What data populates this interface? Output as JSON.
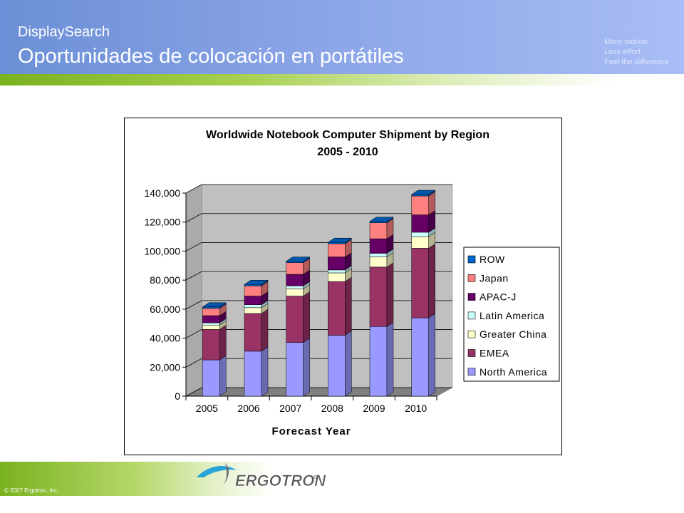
{
  "header": {
    "brand": "DisplaySearch",
    "title": "Oportunidades de colocación en portátiles",
    "motto": [
      "More motion",
      "Less effort",
      "Feel the difference"
    ]
  },
  "footer": {
    "copyright": "© 2007 Ergotron, Inc.",
    "logo_text": "ERGOTRON"
  },
  "chart_data": {
    "type": "bar",
    "stacked": true,
    "three_d": true,
    "title": "Worldwide Notebook Computer Shipment by Region",
    "subtitle": "2005 - 2010",
    "xlabel": "Forecast Year",
    "ylabel": "",
    "categories": [
      "2005",
      "2006",
      "2007",
      "2008",
      "2009",
      "2010"
    ],
    "ylim": [
      0,
      140000
    ],
    "yticks": [
      "0",
      "20,000",
      "40,000",
      "60,000",
      "80,000",
      "100,000",
      "120,000",
      "140,000"
    ],
    "legend_position": "right",
    "grid": true,
    "series": [
      {
        "name": "North America",
        "color": "#9999ff",
        "values": [
          25000,
          31000,
          37000,
          42000,
          48000,
          54000
        ]
      },
      {
        "name": "EMEA",
        "color": "#993366",
        "values": [
          21000,
          26000,
          32000,
          37000,
          41000,
          48000
        ]
      },
      {
        "name": "Greater China",
        "color": "#ffffcc",
        "values": [
          3000,
          4000,
          5000,
          6000,
          7000,
          8000
        ]
      },
      {
        "name": "Latin America",
        "color": "#ccffff",
        "values": [
          1500,
          2000,
          2000,
          2000,
          2500,
          3000
        ]
      },
      {
        "name": "APAC-J",
        "color": "#660066",
        "values": [
          5000,
          6000,
          8000,
          9000,
          10000,
          12000
        ]
      },
      {
        "name": "Japan",
        "color": "#ff8080",
        "values": [
          5000,
          7000,
          8000,
          9000,
          11000,
          13000
        ]
      },
      {
        "name": "ROW",
        "color": "#0066cc",
        "values": [
          1000,
          1000,
          1000,
          1000,
          1000,
          1000
        ]
      }
    ],
    "legend_order": [
      "ROW",
      "Japan",
      "APAC-J",
      "Latin America",
      "Greater China",
      "EMEA",
      "North America"
    ]
  }
}
